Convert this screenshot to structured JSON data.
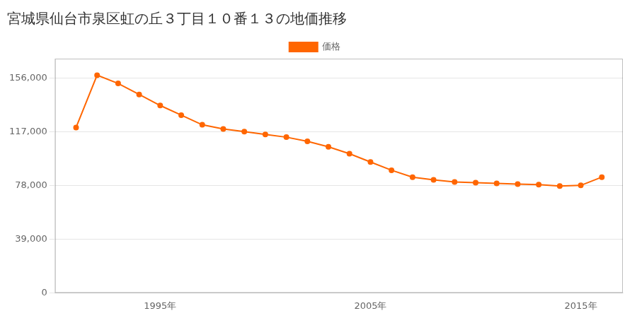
{
  "chart_data": {
    "type": "line",
    "title": "宮城県仙台市泉区虹の丘３丁目１０番１３の地価推移",
    "x": [
      1991,
      1992,
      1993,
      1994,
      1995,
      1996,
      1997,
      1998,
      1999,
      2000,
      2001,
      2002,
      2003,
      2004,
      2005,
      2006,
      2007,
      2008,
      2009,
      2010,
      2011,
      2012,
      2013,
      2014,
      2015,
      2016
    ],
    "series": [
      {
        "name": "価格",
        "color": "#FF6600",
        "marker": "circle",
        "line_style": "solid",
        "values": [
          120000,
          158000,
          152000,
          144000,
          136000,
          129000,
          122000,
          119000,
          117000,
          115000,
          113000,
          110000,
          106000,
          101000,
          95000,
          89000,
          84000,
          82000,
          80500,
          80000,
          79500,
          79000,
          78500,
          77500,
          78000,
          84000
        ]
      }
    ],
    "xlim": [
      1990,
      2017
    ],
    "xticks": [
      {
        "value": 1995,
        "label": "1995年"
      },
      {
        "value": 2005,
        "label": "2005年"
      },
      {
        "value": 2015,
        "label": "2015年"
      }
    ],
    "ylim": [
      0,
      170000
    ],
    "yticks": [
      0,
      {
        "value": 39000,
        "label": "39,000"
      },
      {
        "value": 78000,
        "label": "78,000"
      },
      {
        "value": 117000,
        "label": "117,000"
      },
      {
        "value": 156000,
        "label": "156,000"
      }
    ],
    "grid": "y",
    "legend": "top"
  }
}
